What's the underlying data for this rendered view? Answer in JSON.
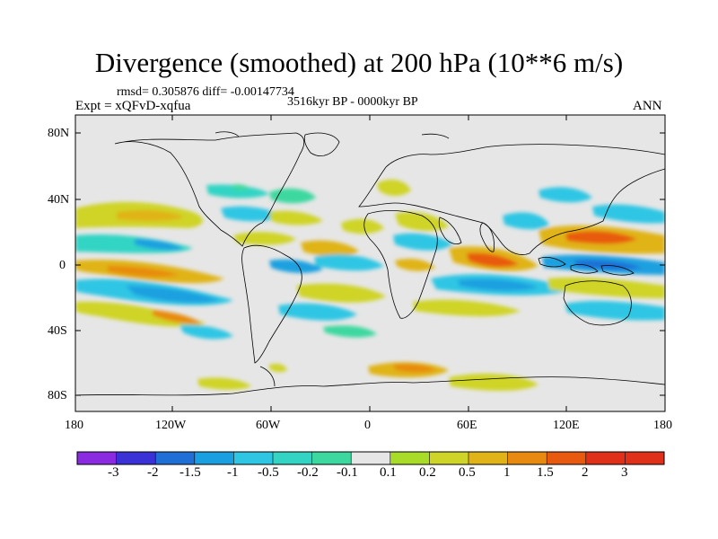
{
  "title": "Divergence (smoothed) at 200 hPa (10**6 m/s)",
  "stats_line": "rmsd= 0.305876 diff= -0.00147734",
  "period": "3516kyr BP - 0000kyr BP",
  "experiment": "Expt = xQFvD-xqfua",
  "season": "ANN",
  "lat_labels": [
    "80N",
    "40N",
    "0",
    "40S",
    "80S"
  ],
  "lon_labels": [
    "180",
    "120W",
    "60W",
    "0",
    "60E",
    "120E",
    "180"
  ],
  "colorbar": {
    "labels": [
      "-3",
      "-2",
      "-1.5",
      "-1",
      "-0.5",
      "-0.2",
      "-0.1",
      "0.1",
      "0.2",
      "0.5",
      "1",
      "1.5",
      "2",
      "3"
    ],
    "colors": [
      "#8a2be2",
      "#3a32d6",
      "#1f6fd6",
      "#1aa0e0",
      "#2fc6e4",
      "#33d4c4",
      "#3dd8a0",
      "#e6e6e6",
      "#a8dc28",
      "#cfd428",
      "#e0b418",
      "#e88a10",
      "#e85a10",
      "#e0301a"
    ]
  }
}
